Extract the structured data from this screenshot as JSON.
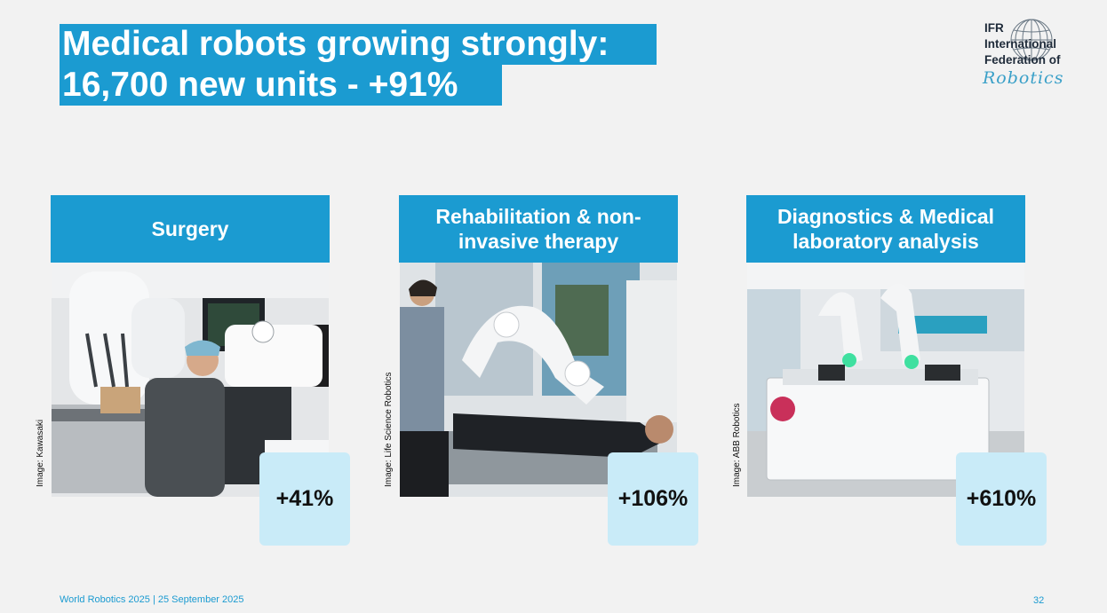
{
  "title": {
    "line1": "Medical robots growing strongly:",
    "line2": "16,700 new units -  +91%"
  },
  "logo": {
    "line1": "IFR",
    "line2": "International",
    "line3": "Federation of",
    "line4": "Robotics",
    "icon": "globe-icon"
  },
  "cards": [
    {
      "heading": "Surgery",
      "growth": "+41%",
      "credit": "Image: Kawasaki"
    },
    {
      "heading": "Rehabilitation & non-invasive therapy",
      "growth": "+106%",
      "credit": "Image: Life Science Robotics"
    },
    {
      "heading": "Diagnostics & Medical laboratory analysis",
      "growth": "+610%",
      "credit": "Image: ABB Robotics"
    }
  ],
  "footer": {
    "text": "World Robotics 2025  | 25 September 2025",
    "page": "32"
  },
  "colors": {
    "accent": "#1b9bd1",
    "stat_box": "#c9ebf8",
    "background": "#f2f2f2"
  }
}
